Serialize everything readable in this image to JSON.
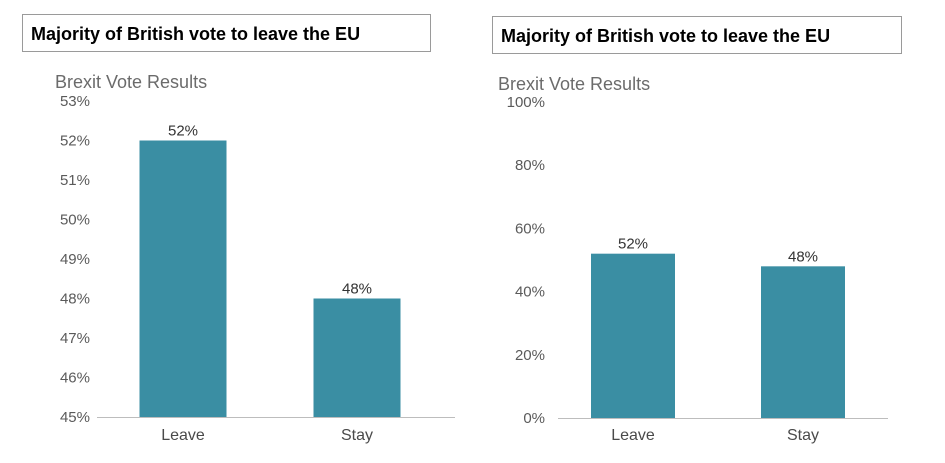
{
  "chart_data": [
    {
      "type": "bar",
      "headline": "Majority of British vote to leave the EU",
      "title": "Brexit Vote Results",
      "categories": [
        "Leave",
        "Stay"
      ],
      "values": [
        52,
        48
      ],
      "data_labels": [
        "52%",
        "48%"
      ],
      "ylim": [
        45,
        53
      ],
      "yticks": [
        45,
        46,
        47,
        48,
        49,
        50,
        51,
        52,
        53
      ],
      "ytick_labels": [
        "45%",
        "46%",
        "47%",
        "48%",
        "49%",
        "50%",
        "51%",
        "52%",
        "53%"
      ],
      "xlabel": "",
      "ylabel": "",
      "grid": false,
      "bar_color": "#3a8ea3"
    },
    {
      "type": "bar",
      "headline": "Majority of British vote to leave the EU",
      "title": "Brexit Vote Results",
      "categories": [
        "Leave",
        "Stay"
      ],
      "values": [
        52,
        48
      ],
      "data_labels": [
        "52%",
        "48%"
      ],
      "ylim": [
        0,
        100
      ],
      "yticks": [
        0,
        20,
        40,
        60,
        80,
        100
      ],
      "ytick_labels": [
        "0%",
        "20%",
        "40%",
        "60%",
        "80%",
        "100%"
      ],
      "xlabel": "",
      "ylabel": "",
      "grid": false,
      "bar_color": "#3a8ea3"
    }
  ]
}
